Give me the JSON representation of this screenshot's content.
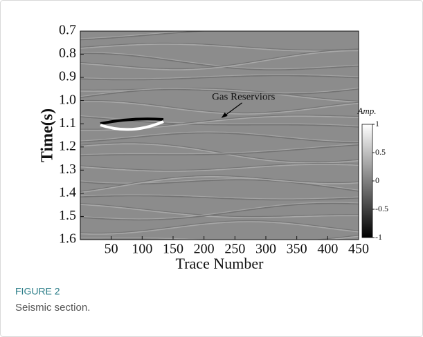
{
  "chart_data": {
    "type": "image",
    "xlabel": "Trace Number",
    "ylabel": "Time(s)",
    "xlim": [
      0,
      450
    ],
    "xticks": [
      50,
      100,
      150,
      200,
      250,
      300,
      350,
      400,
      450
    ],
    "ylim": [
      1.6,
      0.7
    ],
    "yticks": [
      0.7,
      0.8,
      0.9,
      {
        "value": 1,
        "label": "1.0"
      },
      1.1,
      1.2,
      1.3,
      1.4,
      1.5,
      1.6
    ],
    "colorbar_label": "Amp.",
    "clim": [
      -1,
      1
    ],
    "cticks": [
      -1,
      -0.5,
      0,
      0.5,
      1
    ],
    "annotation": {
      "text": "Gas Reserviors",
      "xy": [
        228,
        1.075
      ]
    }
  },
  "caption": {
    "label": "FIGURE 2",
    "text": "Seismic section."
  }
}
